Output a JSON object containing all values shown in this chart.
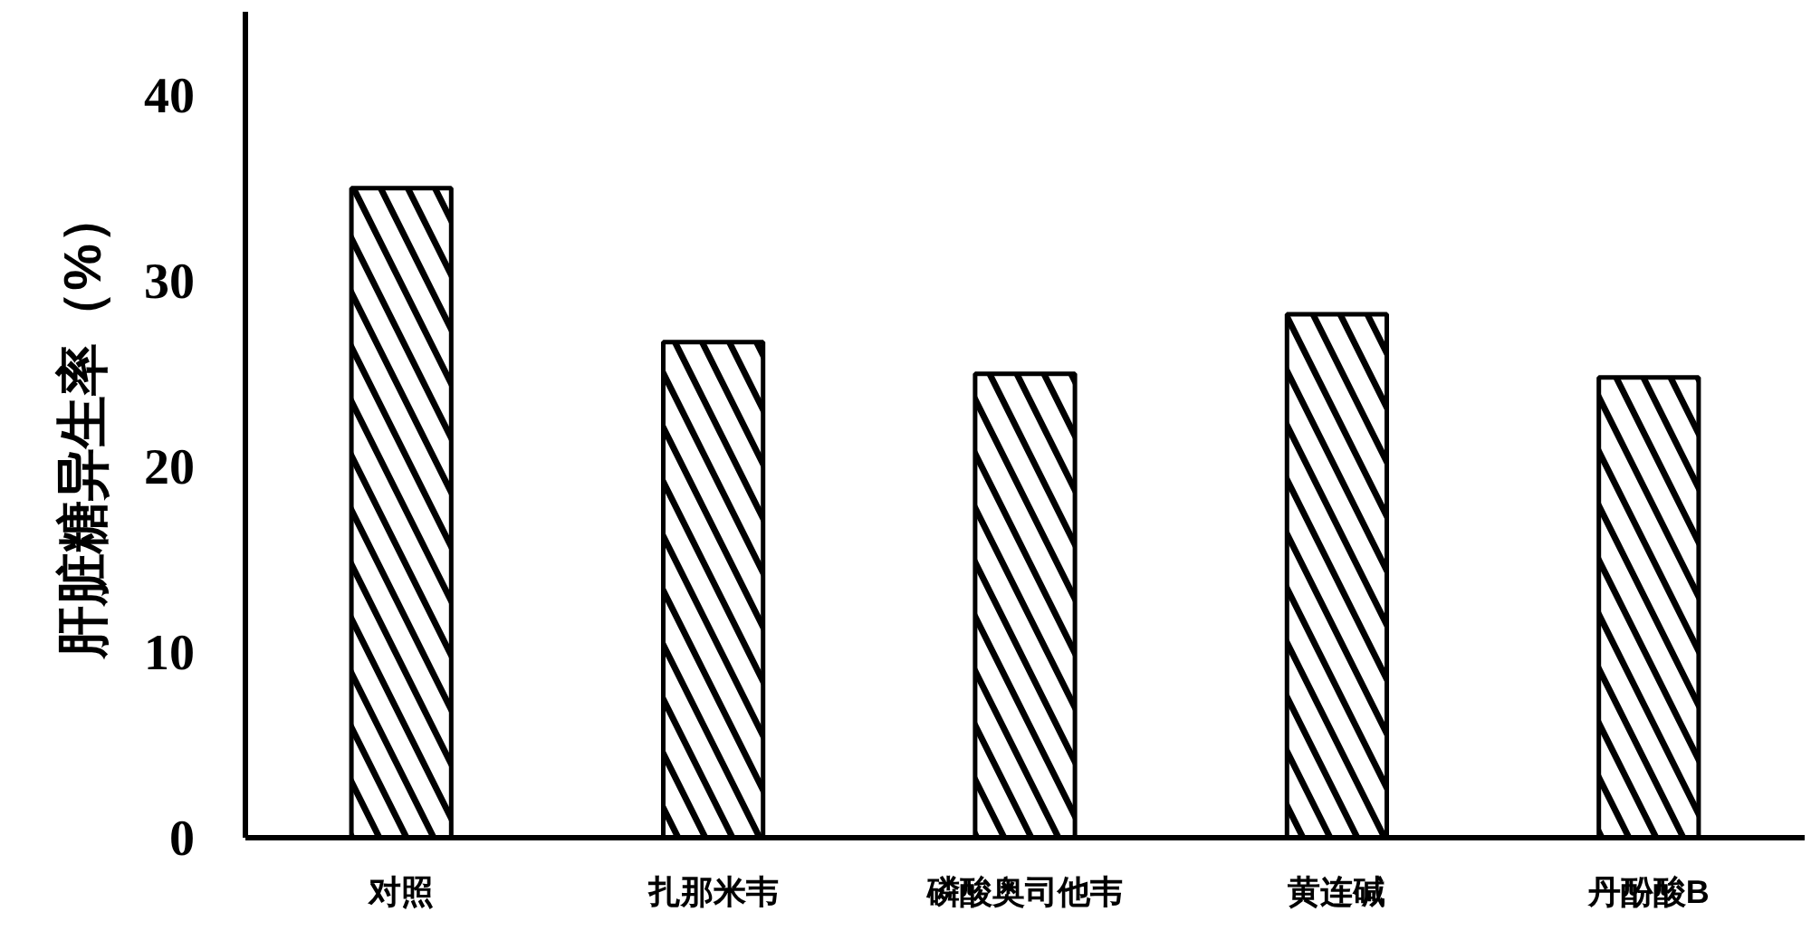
{
  "chart_data": {
    "type": "bar",
    "ylabel": "肝脏糖异生率（%）",
    "categories": [
      "对照",
      "扎那米韦",
      "磷酸奥司他韦",
      "黄连碱",
      "丹酚酸B"
    ],
    "values": [
      35,
      26.7,
      25,
      28.2,
      24.8
    ],
    "color": "#000000",
    "ylim": [
      0,
      44.5
    ],
    "yticks": [
      0,
      10,
      20,
      30,
      40
    ],
    "grid": false
  }
}
